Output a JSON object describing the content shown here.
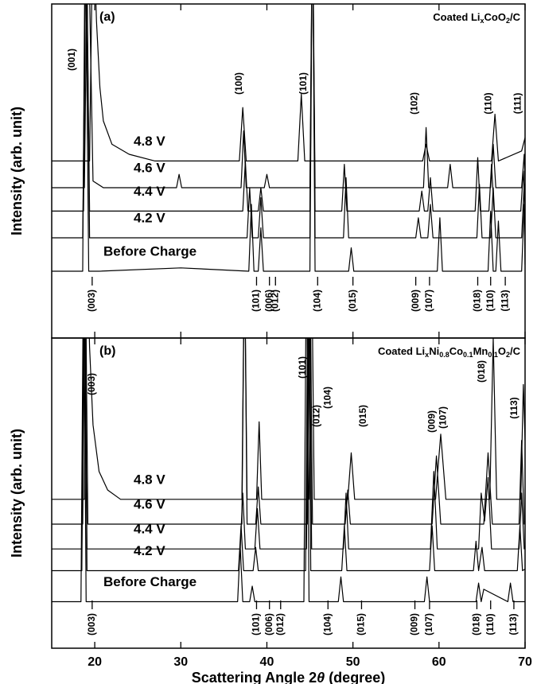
{
  "chart_data": [
    {
      "type": "line",
      "panel_label": "(a)",
      "annotation": [
        {
          "text": "Coated Li",
          "subscript": false
        },
        {
          "text": "x",
          "subscript": true
        },
        {
          "text": "CoO",
          "subscript": false
        },
        {
          "text": "2",
          "subscript": true
        },
        {
          "text": "/C",
          "subscript": false
        }
      ],
      "y_label": "Intensity (arb. unit)",
      "xlim": [
        15,
        70
      ],
      "ylim": [
        0,
        100
      ],
      "xticks": [
        20,
        30,
        40,
        50,
        60,
        70
      ],
      "tick_labels": false,
      "series": [
        {
          "name": "4.8 V",
          "color": "#000000",
          "x": [
            15,
            19.4,
            19.8,
            20.2,
            20.6,
            21,
            22,
            24,
            27,
            36.8,
            37.2,
            37.6,
            43.6,
            44.0,
            44.4,
            58.1,
            58.5,
            58.9,
            66.1,
            66.5,
            66.9,
            69.6,
            70
          ],
          "values": [
            53,
            53,
            130,
            95,
            75,
            65,
            58,
            55,
            53,
            53,
            69,
            53,
            53,
            73,
            53,
            53,
            58,
            53,
            53,
            67,
            53,
            56,
            60
          ]
        },
        {
          "name": "4.6 V",
          "color": "#000000",
          "x": [
            15,
            18.8,
            19.2,
            19.8,
            21,
            29.5,
            29.8,
            30.1,
            37.0,
            37.3,
            37.6,
            39.7,
            40.0,
            40.3,
            45.0,
            45.3,
            45.6,
            58.2,
            58.5,
            58.8,
            61.0,
            61.3,
            61.6,
            66.0,
            66.3,
            66.6,
            69.6,
            69.9,
            70
          ],
          "values": [
            45,
            45,
            130,
            47,
            45,
            45,
            49,
            45,
            45,
            62,
            45,
            45,
            49,
            45,
            45,
            130,
            45,
            45,
            63,
            45,
            45,
            52,
            45,
            45,
            58,
            45,
            45,
            55,
            47
          ]
        },
        {
          "name": "4.4 V",
          "color": "#000000",
          "x": [
            15,
            18.7,
            19.0,
            19.4,
            21,
            37.2,
            37.5,
            37.8,
            39.0,
            39.3,
            39.6,
            45.0,
            45.3,
            45.6,
            48.7,
            49.0,
            49.3,
            57.7,
            58.0,
            58.3,
            58.7,
            59.0,
            59.3,
            64.2,
            64.5,
            64.8,
            65.8,
            66.1,
            66.4,
            69.5,
            69.8,
            70
          ],
          "values": [
            38,
            38,
            130,
            38,
            38,
            38,
            53,
            38,
            38,
            45,
            38,
            38,
            130,
            38,
            38,
            52,
            38,
            38,
            44,
            38,
            38,
            48,
            38,
            38,
            54,
            38,
            38,
            52,
            38,
            38,
            50,
            40
          ]
        },
        {
          "name": "4.2 V",
          "color": "#000000",
          "x": [
            15,
            18.6,
            19.0,
            19.4,
            21,
            37.7,
            38.0,
            38.3,
            39.0,
            39.3,
            39.6,
            45.0,
            45.3,
            45.6,
            48.9,
            49.2,
            49.5,
            57.3,
            57.6,
            57.9,
            58.7,
            59.0,
            59.3,
            64.4,
            64.7,
            65.0,
            66.0,
            66.3,
            66.6,
            69.6,
            69.9,
            70
          ],
          "values": [
            30,
            30,
            130,
            30,
            30,
            30,
            45,
            30,
            30,
            42,
            30,
            30,
            130,
            30,
            30,
            48,
            30,
            30,
            36,
            30,
            30,
            40,
            30,
            30,
            46,
            30,
            30,
            45,
            30,
            30,
            46,
            32
          ]
        },
        {
          "name": "Before Charge",
          "color": "#000000",
          "x": [
            15,
            18.6,
            18.9,
            19.3,
            20.5,
            30,
            37.9,
            38.2,
            38.5,
            39.0,
            39.3,
            39.6,
            45.0,
            45.3,
            45.6,
            49.5,
            49.8,
            50.1,
            59.8,
            60.1,
            60.4,
            65.7,
            66.0,
            66.3,
            66.6,
            66.9,
            67.2,
            69.6,
            69.9,
            70
          ],
          "values": [
            20,
            20,
            130,
            20,
            20,
            21,
            20,
            40,
            20,
            20,
            33,
            20,
            20,
            130,
            20,
            20,
            27,
            20,
            20,
            36,
            20,
            20,
            38,
            20,
            20,
            35,
            20,
            20,
            40,
            22
          ]
        }
      ],
      "peak_labels": [
        {
          "label": "(001)",
          "x": 17.4
        },
        {
          "label": "(100)",
          "x": 36.8
        },
        {
          "label": "(101)",
          "x": 44.3
        },
        {
          "label": "(102)",
          "x": 57.2
        },
        {
          "label": "(110)",
          "x": 65.8
        },
        {
          "label": "(111)",
          "x": 69.2
        }
      ],
      "reflections": [
        {
          "label": "(003)",
          "x": 19.7
        },
        {
          "label": "(101)",
          "x": 38.8
        },
        {
          "label": "(006)",
          "x": 40.3
        },
        {
          "label": "(012)",
          "x": 41.0
        },
        {
          "label": "(104)",
          "x": 45.9
        },
        {
          "label": "(015)",
          "x": 50.0
        },
        {
          "label": "(009)",
          "x": 57.3
        },
        {
          "label": "(107)",
          "x": 58.9
        },
        {
          "label": "(018)",
          "x": 64.5
        },
        {
          "label": "(110)",
          "x": 66.0
        },
        {
          "label": "(113)",
          "x": 67.7
        }
      ]
    },
    {
      "type": "line",
      "panel_label": "(b)",
      "annotation": [
        {
          "text": "Coated Li",
          "subscript": false
        },
        {
          "text": "x",
          "subscript": true
        },
        {
          "text": "Ni",
          "subscript": false
        },
        {
          "text": "0.8",
          "subscript": true
        },
        {
          "text": "Co",
          "subscript": false
        },
        {
          "text": "0.1",
          "subscript": true
        },
        {
          "text": "Mn",
          "subscript": false
        },
        {
          "text": "0.1",
          "subscript": true
        },
        {
          "text": "O",
          "subscript": false
        },
        {
          "text": "2",
          "subscript": true
        },
        {
          "text": "/C",
          "subscript": false
        }
      ],
      "y_label": "Intensity (arb. unit)",
      "xlim": [
        15,
        70
      ],
      "ylim": [
        0,
        100
      ],
      "xticks": [
        20,
        30,
        40,
        50,
        60,
        70
      ],
      "tick_labels": true,
      "x_label": [
        {
          "text": "Scattering Angle 2",
          "italic": false
        },
        {
          "text": "θ",
          "italic": true
        },
        {
          "text": " (degree)",
          "italic": false
        }
      ],
      "series": [
        {
          "name": "4.8 V",
          "color": "#000000",
          "x": [
            15,
            18.8,
            19.1,
            19.4,
            19.8,
            20.5,
            21.5,
            23,
            37.1,
            37.4,
            37.7,
            38.8,
            39.1,
            39.4,
            44.9,
            45.2,
            45.5,
            49.4,
            49.8,
            50.2,
            59.6,
            60.2,
            60.8,
            65.9,
            66.3,
            66.7,
            69.5,
            69.8,
            70
          ],
          "values": [
            48,
            48,
            130,
            97,
            72,
            57,
            51,
            48,
            48,
            130,
            48,
            48,
            73,
            48,
            48,
            130,
            48,
            48,
            63,
            48,
            48,
            69,
            48,
            48,
            100,
            48,
            48,
            85,
            67
          ]
        },
        {
          "name": "4.6 V",
          "color": "#000000",
          "x": [
            15,
            18.6,
            18.9,
            19.2,
            20,
            37.1,
            37.4,
            37.7,
            38.7,
            39.0,
            39.3,
            44.7,
            45.0,
            45.3,
            49.1,
            49.4,
            49.7,
            59.2,
            59.7,
            60.2,
            65.2,
            65.7,
            66.2,
            69.3,
            69.6,
            69.9,
            70
          ],
          "values": [
            40,
            40,
            130,
            40,
            40,
            40,
            130,
            40,
            40,
            52,
            40,
            40,
            130,
            40,
            40,
            51,
            40,
            40,
            62,
            40,
            40,
            63,
            40,
            40,
            67,
            40,
            41
          ]
        },
        {
          "name": "4.4 V",
          "color": "#000000",
          "x": [
            15,
            18.5,
            18.8,
            19.1,
            20,
            36.9,
            37.2,
            37.5,
            38.6,
            38.9,
            39.2,
            44.6,
            44.9,
            45.2,
            48.9,
            49.2,
            49.5,
            59.0,
            59.4,
            59.8,
            64.6,
            64.9,
            65.3,
            65.7,
            66.1,
            69.3,
            69.6,
            69.9,
            70
          ],
          "values": [
            32,
            32,
            130,
            32,
            32,
            32,
            50,
            32,
            32,
            45,
            32,
            32,
            130,
            32,
            32,
            50,
            32,
            32,
            57,
            32,
            32,
            50,
            41,
            55,
            32,
            32,
            50,
            32,
            33
          ]
        },
        {
          "name": "4.2 V",
          "color": "#000000",
          "x": [
            15,
            18.5,
            18.8,
            19.1,
            20,
            36.7,
            37.0,
            37.3,
            38.4,
            38.7,
            39.0,
            44.5,
            44.8,
            45.1,
            48.7,
            49.0,
            49.3,
            58.9,
            59.2,
            59.5,
            64.0,
            64.3,
            64.6,
            65.0,
            65.3,
            69.1,
            69.4,
            69.7,
            70
          ],
          "values": [
            25,
            25,
            130,
            25,
            25,
            25,
            39.5,
            25,
            25,
            32.5,
            25,
            25,
            130,
            25,
            25,
            39.5,
            25,
            25,
            39.5,
            25,
            25,
            34.5,
            25,
            32.5,
            25,
            25,
            39.5,
            25,
            25.5
          ]
        },
        {
          "name": "Before Charge",
          "color": "#000000",
          "x": [
            15,
            18.4,
            18.7,
            19.0,
            20,
            36.6,
            36.9,
            37.2,
            38.0,
            38.3,
            38.6,
            44.3,
            44.6,
            44.9,
            48.3,
            48.6,
            48.9,
            58.3,
            58.6,
            58.9,
            64.3,
            64.6,
            64.9,
            65.2,
            68.0,
            68.3,
            68.6,
            70
          ],
          "values": [
            15,
            15,
            130,
            15,
            15,
            15,
            33,
            15,
            15,
            20,
            15,
            15,
            130,
            15,
            15,
            23,
            15,
            15,
            23,
            15,
            15,
            21,
            15,
            19,
            15,
            21,
            15,
            15
          ]
        }
      ],
      "peak_labels": [
        {
          "label": "(003)",
          "x": 19.7
        },
        {
          "label": "(101)",
          "x": 44.2
        },
        {
          "label": "(012)",
          "x": 45.8
        },
        {
          "label": "(104)",
          "x": 47.1
        },
        {
          "label": "(015)",
          "x": 51.2
        },
        {
          "label": "(009)",
          "x": 59.2
        },
        {
          "label": "(107)",
          "x": 60.5
        },
        {
          "label": "(018)",
          "x": 65.0
        },
        {
          "label": "(113)",
          "x": 68.8
        }
      ],
      "reflections": [
        {
          "label": "(003)",
          "x": 19.7
        },
        {
          "label": "(101)",
          "x": 38.8
        },
        {
          "label": "(006)",
          "x": 40.3
        },
        {
          "label": "(012)",
          "x": 41.6
        },
        {
          "label": "(104)",
          "x": 47.1
        },
        {
          "label": "(015)",
          "x": 51.0
        },
        {
          "label": "(009)",
          "x": 57.2
        },
        {
          "label": "(107)",
          "x": 58.9
        },
        {
          "label": "(018)",
          "x": 64.4
        },
        {
          "label": "(110)",
          "x": 66.0
        },
        {
          "label": "(113)",
          "x": 68.7
        }
      ]
    }
  ]
}
